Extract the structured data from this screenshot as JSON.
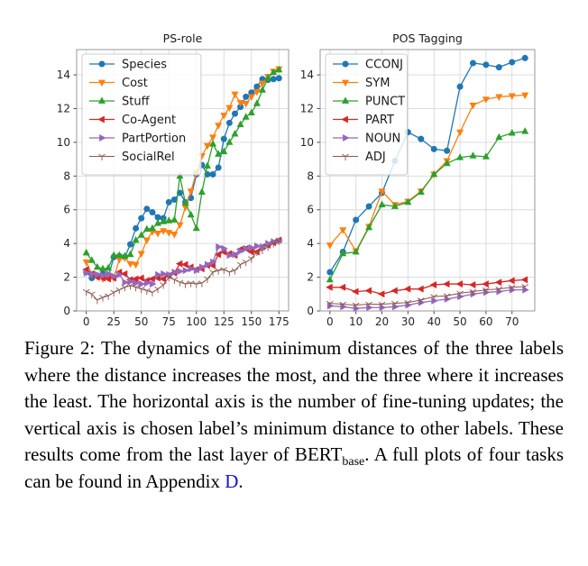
{
  "caption": {
    "text_main": "Figure 2: The dynamics of the minimum distances of the three labels where the distance increases the most, and the three where it increases the least. The horizontal axis is the number of fine-tuning updates; the vertical axis is chosen label’s minimum distance to other labels. These results come from the last layer of BERT",
    "subscript": "base",
    "text_after_sub": ". A full plots of four tasks can be found in Appendix ",
    "link_text": "D",
    "text_end": ".",
    "link_color": "#1515cd"
  },
  "colors": {
    "blue": "#1f77b4",
    "orange": "#ff7f0e",
    "green": "#2ca02c",
    "red": "#d62728",
    "purple": "#9467bd",
    "brown": "#8c564b",
    "grid": "#d8d8d8",
    "spine": "#9a9a9a",
    "tick_text": "#262626"
  },
  "chart_data": [
    {
      "type": "line",
      "title": "PS-role",
      "xlabel": "",
      "ylabel": "",
      "grid": true,
      "legend_position": "upper left",
      "xlim": [
        -8.75,
        183.75
      ],
      "ylim": [
        0,
        15.5
      ],
      "xticks": [
        0,
        25,
        50,
        75,
        100,
        125,
        150,
        175
      ],
      "yticks": [
        0,
        2,
        4,
        6,
        8,
        10,
        12,
        14
      ],
      "x": [
        0,
        5,
        10,
        15,
        20,
        25,
        30,
        35,
        40,
        45,
        50,
        55,
        60,
        65,
        70,
        75,
        80,
        85,
        90,
        95,
        100,
        105,
        110,
        115,
        120,
        125,
        130,
        135,
        140,
        145,
        150,
        155,
        160,
        165,
        170,
        175
      ],
      "series": [
        {
          "name": "Species",
          "color": "#1f77b4",
          "marker": "circle",
          "values": [
            2.3,
            1.95,
            2.1,
            2.2,
            2.0,
            3.2,
            3.25,
            3.2,
            3.95,
            4.9,
            5.5,
            6.05,
            5.85,
            5.55,
            5.5,
            6.45,
            6.6,
            7.0,
            6.45,
            6.7,
            8.1,
            8.65,
            8.1,
            8.1,
            8.5,
            10.2,
            11.15,
            11.7,
            12.1,
            12.7,
            12.95,
            13.3,
            13.75,
            13.7,
            13.75,
            13.8
          ]
        },
        {
          "name": "Cost",
          "color": "#ff7f0e",
          "marker": "triangle-down",
          "values": [
            2.9,
            2.2,
            2.05,
            1.9,
            2.1,
            1.95,
            3.05,
            3.15,
            2.8,
            2.75,
            3.4,
            4.2,
            4.7,
            4.6,
            4.75,
            4.65,
            4.55,
            5.1,
            6.15,
            7.1,
            8.2,
            9.2,
            9.8,
            10.3,
            11.0,
            11.6,
            12.05,
            12.85,
            12.35,
            12.3,
            12.7,
            13.0,
            13.5,
            13.9,
            14.2,
            14.35
          ]
        },
        {
          "name": "Stuff",
          "color": "#2ca02c",
          "marker": "triangle-up",
          "values": [
            3.45,
            3.0,
            2.6,
            2.5,
            2.55,
            3.3,
            3.3,
            3.25,
            3.35,
            4.2,
            4.5,
            4.85,
            4.9,
            5.2,
            5.3,
            5.35,
            5.4,
            8.0,
            6.4,
            5.7,
            4.9,
            7.05,
            8.6,
            9.9,
            9.3,
            9.45,
            10.0,
            10.5,
            11.05,
            11.5,
            11.75,
            12.3,
            13.1,
            13.8,
            14.15,
            14.3
          ]
        },
        {
          "name": "Co-Agent",
          "color": "#d62728",
          "marker": "triangle-left",
          "values": [
            2.45,
            2.2,
            2.0,
            1.95,
            1.9,
            1.95,
            2.3,
            2.2,
            1.85,
            1.9,
            1.95,
            1.8,
            1.9,
            1.95,
            1.9,
            2.1,
            2.25,
            2.8,
            2.75,
            2.6,
            2.45,
            2.5,
            2.7,
            2.7,
            3.35,
            3.5,
            3.4,
            3.3,
            3.65,
            3.7,
            3.5,
            3.5,
            3.8,
            3.9,
            4.05,
            4.2
          ]
        },
        {
          "name": "PartPortion",
          "color": "#9467bd",
          "marker": "triangle-right",
          "values": [
            2.25,
            2.2,
            2.15,
            2.1,
            2.2,
            2.05,
            2.15,
            1.7,
            1.75,
            1.65,
            1.6,
            1.65,
            1.6,
            2.15,
            2.2,
            2.15,
            2.3,
            2.35,
            2.4,
            2.5,
            2.4,
            2.6,
            2.75,
            2.9,
            3.8,
            3.7,
            3.3,
            3.35,
            3.55,
            3.7,
            3.75,
            3.85,
            3.8,
            4.0,
            4.1,
            4.15
          ]
        },
        {
          "name": "SocialRel",
          "color": "#8c564b",
          "marker": "tri-down-thin",
          "values": [
            1.15,
            1.0,
            0.65,
            0.8,
            0.9,
            1.1,
            1.25,
            1.4,
            1.5,
            1.4,
            1.3,
            1.2,
            1.1,
            1.3,
            1.55,
            2.0,
            1.85,
            1.7,
            1.6,
            1.65,
            1.6,
            1.65,
            1.9,
            2.3,
            2.4,
            2.45,
            2.3,
            2.4,
            2.75,
            2.9,
            3.1,
            3.5,
            3.6,
            3.8,
            4.0,
            4.15
          ]
        }
      ]
    },
    {
      "type": "line",
      "title": "POS Tagging",
      "xlabel": "",
      "ylabel": "",
      "grid": true,
      "legend_position": "upper left",
      "xlim": [
        -3.75,
        78.75
      ],
      "ylim": [
        0,
        15.5
      ],
      "xticks": [
        0,
        10,
        20,
        30,
        40,
        50,
        60,
        70
      ],
      "yticks": [
        0,
        2,
        4,
        6,
        8,
        10,
        12,
        14
      ],
      "x": [
        0,
        5,
        10,
        15,
        20,
        25,
        30,
        35,
        40,
        45,
        50,
        55,
        60,
        65,
        70,
        75
      ],
      "series": [
        {
          "name": "CCONJ",
          "color": "#1f77b4",
          "marker": "circle",
          "values": [
            2.3,
            3.5,
            5.4,
            6.2,
            7.0,
            8.9,
            10.6,
            10.2,
            9.6,
            9.5,
            13.3,
            14.7,
            14.6,
            14.45,
            14.75,
            15.0
          ]
        },
        {
          "name": "SYM",
          "color": "#ff7f0e",
          "marker": "triangle-down",
          "values": [
            3.9,
            4.8,
            3.55,
            5.0,
            7.1,
            6.3,
            6.5,
            7.1,
            8.1,
            8.9,
            10.6,
            12.2,
            12.55,
            12.7,
            12.75,
            12.8
          ]
        },
        {
          "name": "PUNCT",
          "color": "#2ca02c",
          "marker": "triangle-up",
          "values": [
            1.85,
            3.4,
            3.5,
            4.95,
            6.3,
            6.2,
            6.45,
            7.05,
            8.1,
            8.75,
            9.1,
            9.2,
            9.15,
            10.3,
            10.55,
            10.65
          ]
        },
        {
          "name": "PART",
          "color": "#d62728",
          "marker": "triangle-left",
          "values": [
            1.4,
            1.4,
            1.15,
            1.2,
            1.0,
            1.2,
            1.3,
            1.3,
            1.55,
            1.6,
            1.6,
            1.55,
            1.6,
            1.7,
            1.8,
            1.85
          ]
        },
        {
          "name": "NOUN",
          "color": "#9467bd",
          "marker": "triangle-right",
          "values": [
            0.3,
            0.25,
            0.15,
            0.2,
            0.2,
            0.25,
            0.35,
            0.5,
            0.6,
            0.7,
            0.85,
            1.0,
            1.1,
            1.15,
            1.25,
            1.25
          ]
        },
        {
          "name": "ADJ",
          "color": "#8c564b",
          "marker": "tri-down-thin",
          "values": [
            0.45,
            0.4,
            0.35,
            0.4,
            0.4,
            0.45,
            0.5,
            0.65,
            0.85,
            0.9,
            1.05,
            1.15,
            1.25,
            1.3,
            1.4,
            1.45
          ]
        }
      ]
    }
  ]
}
